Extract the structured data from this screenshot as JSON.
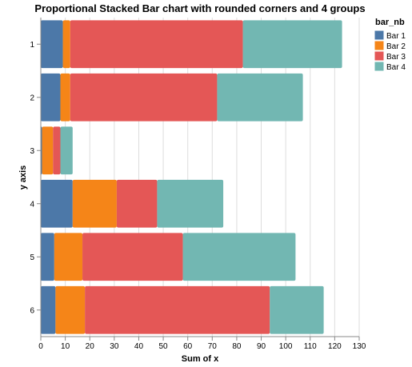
{
  "chart_data": {
    "type": "bar",
    "orientation": "horizontal",
    "stacked": true,
    "title": "Proportional Stacked Bar chart with rounded corners and 4 groups",
    "xlabel": "Sum of x",
    "ylabel": "y axis",
    "xlim": [
      0,
      130
    ],
    "x_ticks": [
      0,
      10,
      20,
      30,
      40,
      50,
      60,
      70,
      80,
      90,
      100,
      110,
      120,
      130
    ],
    "grid": true,
    "legend": {
      "title": "bar_nb",
      "position": "top-right"
    },
    "categories": [
      "1",
      "2",
      "3",
      "4",
      "5",
      "6"
    ],
    "series": [
      {
        "name": "Bar 1",
        "color": "#4c78a8",
        "values": [
          9,
          8,
          0.5,
          13,
          5.5,
          6
        ]
      },
      {
        "name": "Bar 2",
        "color": "#f58518",
        "values": [
          3,
          4,
          4.5,
          18,
          11.5,
          12
        ]
      },
      {
        "name": "Bar 3",
        "color": "#e45756",
        "values": [
          70.5,
          60,
          3,
          16.5,
          41,
          75.5
        ]
      },
      {
        "name": "Bar 4",
        "color": "#72b7b2",
        "values": [
          40.5,
          35,
          5,
          27,
          46,
          22
        ]
      }
    ]
  }
}
